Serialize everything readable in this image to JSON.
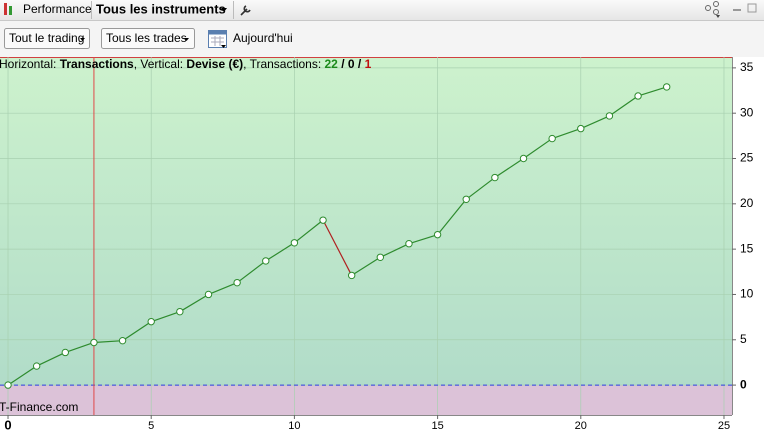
{
  "toolbar": {
    "title": "Performance",
    "instruments": "Tous les instruments"
  },
  "filters": {
    "trading": "Tout le trading",
    "trades": "Tous les trades",
    "period": "Aujourd'hui"
  },
  "watermark": "T-Finance.com",
  "chart_data": {
    "type": "line",
    "header": {
      "parts": [
        "Horizontal: ",
        "Transactions",
        ", Vertical: ",
        "Devise (€)",
        ", Transactions: "
      ],
      "counts": [
        22,
        0,
        1
      ],
      "count_separator": " / "
    },
    "x": [
      0,
      1,
      2,
      3,
      4,
      5,
      6,
      7,
      8,
      9,
      10,
      11,
      12,
      13,
      14,
      15,
      16,
      17,
      18,
      19,
      20,
      21,
      22,
      23
    ],
    "series": [
      {
        "name": "Performance",
        "color": "#2e8b2e",
        "down_color": "#b02020",
        "values": [
          0,
          2.1,
          3.6,
          4.7,
          4.9,
          7.0,
          8.1,
          10.0,
          11.3,
          13.7,
          15.7,
          18.2,
          12.1,
          14.1,
          15.6,
          16.6,
          20.5,
          22.9,
          25.0,
          27.2,
          28.3,
          29.7,
          31.9,
          32.9
        ]
      }
    ],
    "xlim": [
      -0.28,
      25.28
    ],
    "xticks": [
      0,
      5,
      10,
      15,
      20,
      25
    ],
    "ylim": [
      -3.3,
      36.2
    ],
    "yticks": [
      0,
      5,
      10,
      15,
      20,
      25,
      30,
      35
    ],
    "grid": true,
    "cursor_x": 3
  }
}
